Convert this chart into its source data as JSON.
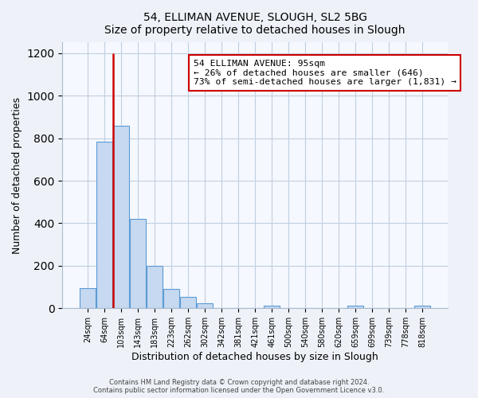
{
  "title": "54, ELLIMAN AVENUE, SLOUGH, SL2 5BG",
  "subtitle": "Size of property relative to detached houses in Slough",
  "xlabel": "Distribution of detached houses by size in Slough",
  "ylabel": "Number of detached properties",
  "bin_labels": [
    "24sqm",
    "64sqm",
    "103sqm",
    "143sqm",
    "183sqm",
    "223sqm",
    "262sqm",
    "302sqm",
    "342sqm",
    "381sqm",
    "421sqm",
    "461sqm",
    "500sqm",
    "540sqm",
    "580sqm",
    "620sqm",
    "659sqm",
    "699sqm",
    "739sqm",
    "778sqm",
    "818sqm"
  ],
  "bin_counts": [
    95,
    785,
    860,
    420,
    200,
    90,
    52,
    22,
    0,
    0,
    0,
    14,
    0,
    0,
    0,
    0,
    13,
    0,
    0,
    0,
    13
  ],
  "bar_color": "#c6d9f0",
  "bar_edge_color": "#5b9bd5",
  "vline_x_index": 2,
  "vline_color": "#cc0000",
  "annotation_text": "54 ELLIMAN AVENUE: 95sqm\n← 26% of detached houses are smaller (646)\n73% of semi-detached houses are larger (1,831) →",
  "annotation_box_color": "#ffffff",
  "annotation_box_edge": "#cc0000",
  "ylim": [
    0,
    1250
  ],
  "yticks": [
    0,
    200,
    400,
    600,
    800,
    1000,
    1200
  ],
  "footer1": "Contains HM Land Registry data © Crown copyright and database right 2024.",
  "footer2": "Contains public sector information licensed under the Open Government Licence v3.0.",
  "bg_color": "#eef2f8",
  "plot_bg_color": "#f5f8fe"
}
